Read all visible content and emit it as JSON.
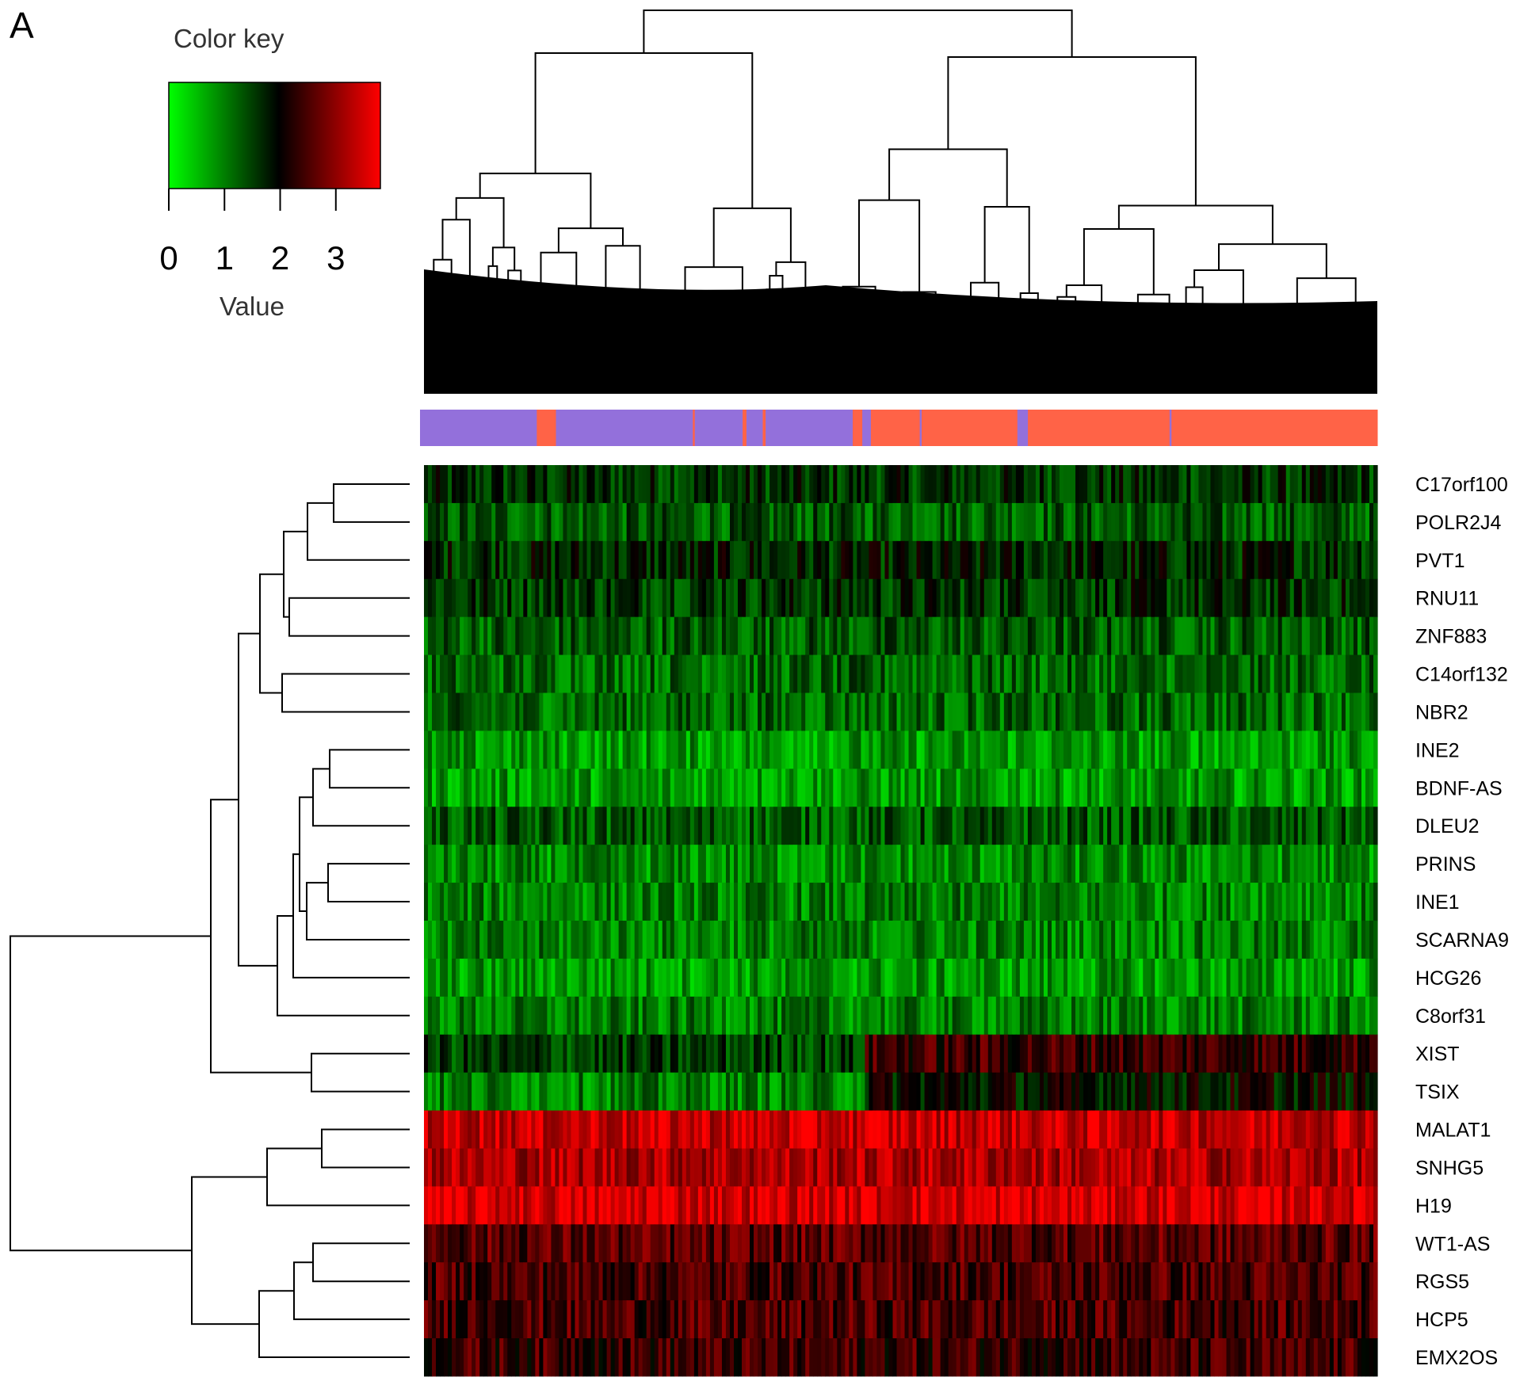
{
  "panel_label": "A",
  "chart_data": {
    "type": "heatmap",
    "title": "",
    "color_key": {
      "title": "Color key",
      "label": "Value",
      "ticks": [
        "0",
        "1",
        "2",
        "3"
      ],
      "tick_values": [
        0,
        1,
        2,
        3
      ],
      "range": [
        0,
        3.8
      ],
      "colors": {
        "low": "#00ff00",
        "mid": "#000000",
        "high": "#ff0000"
      }
    },
    "rows": [
      "C17orf100",
      "POLR2J4",
      "PVT1",
      "RNU11",
      "ZNF883",
      "C14orf132",
      "NBR2",
      "INE2",
      "BDNF-AS",
      "DLEU2",
      "PRINS",
      "INE1",
      "SCARNA9",
      "HCG26",
      "C8orf31",
      "XIST",
      "TSIX",
      "MALAT1",
      "SNHG5",
      "H19",
      "WT1-AS",
      "RGS5",
      "HCP5",
      "EMX2OS"
    ],
    "row_mean_values": [
      1.6,
      1.3,
      1.7,
      1.6,
      1.3,
      1.2,
      1.2,
      0.8,
      0.8,
      1.3,
      0.9,
      1.0,
      1.0,
      0.8,
      1.0,
      1.5,
      1.0,
      3.4,
      3.2,
      3.5,
      2.6,
      2.5,
      2.5,
      2.4
    ],
    "column_annotation": {
      "colors": {
        "group_1": "#9370db",
        "group_2": "#ff6347"
      },
      "segments": [
        {
          "group": "group_1",
          "fraction": 0.122
        },
        {
          "group": "group_2",
          "fraction": 0.02
        },
        {
          "group": "group_1",
          "fraction": 0.143
        },
        {
          "group": "group_2",
          "fraction": 0.002
        },
        {
          "group": "group_1",
          "fraction": 0.05
        },
        {
          "group": "group_2",
          "fraction": 0.004
        },
        {
          "group": "group_1",
          "fraction": 0.017
        },
        {
          "group": "group_2",
          "fraction": 0.003
        },
        {
          "group": "group_1",
          "fraction": 0.091
        },
        {
          "group": "group_2",
          "fraction": 0.01
        },
        {
          "group": "group_1",
          "fraction": 0.009
        },
        {
          "group": "group_2",
          "fraction": 0.051
        },
        {
          "group": "group_1",
          "fraction": 0.002
        },
        {
          "group": "group_2",
          "fraction": 0.1
        },
        {
          "group": "group_1",
          "fraction": 0.011
        },
        {
          "group": "group_2",
          "fraction": 0.148
        },
        {
          "group": "group_1",
          "fraction": 0.002
        },
        {
          "group": "group_2",
          "fraction": 0.215
        }
      ]
    },
    "row_dendrogram": true,
    "column_dendrogram": true,
    "legend_position": "top-left"
  }
}
